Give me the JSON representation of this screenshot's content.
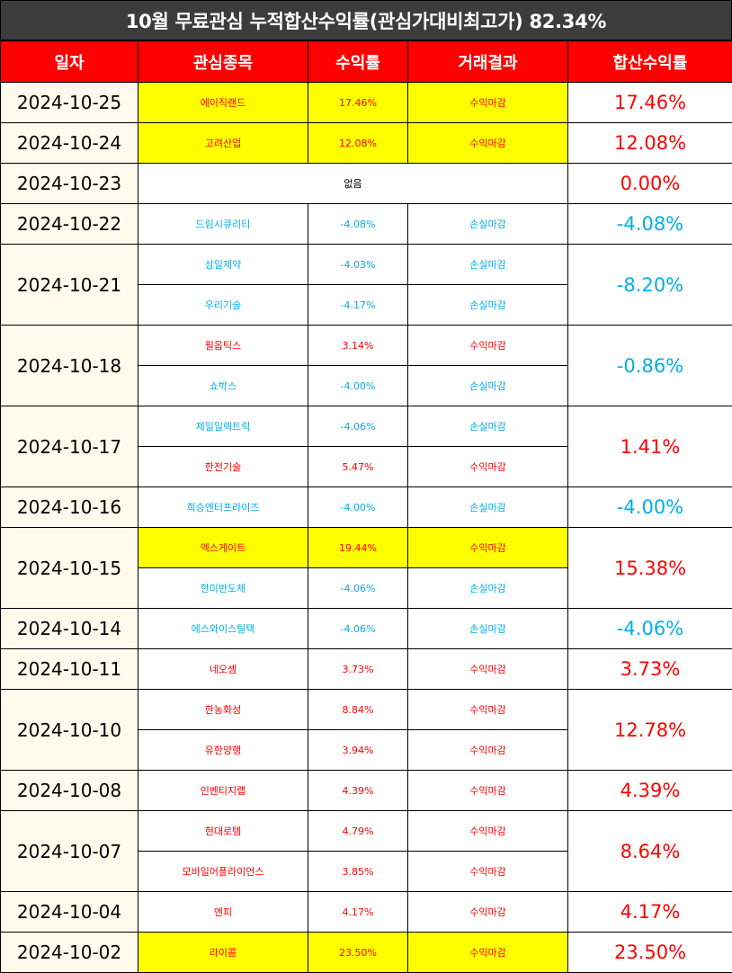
{
  "title": "10월 무료관심 누적합산수익률(관심가대비최고가) 82.34%",
  "headers": {
    "date": "일자",
    "stock": "관심종목",
    "return": "수익률",
    "result": "거래결과",
    "total": "합산수익률"
  },
  "colors": {
    "header_red": "#ff0000",
    "title_bg": "#3c3c3c",
    "profit": "#ff0000",
    "loss": "#00aee8",
    "highlight": "#ffff00",
    "date_bg": "#fffaeb"
  },
  "rows": [
    {
      "date": "2024-10-25",
      "total": "17.46%",
      "total_sign": "pos",
      "items": [
        {
          "stock": "에이직랜드",
          "return": "17.46%",
          "result": "수익마감",
          "sign": "pos",
          "highlight": true
        }
      ]
    },
    {
      "date": "2024-10-24",
      "total": "12.08%",
      "total_sign": "pos",
      "items": [
        {
          "stock": "고려산업",
          "return": "12.08%",
          "result": "수익마감",
          "sign": "pos",
          "highlight": true
        }
      ]
    },
    {
      "date": "2024-10-23",
      "total": "0.00%",
      "total_sign": "pos",
      "none": "없음",
      "items": []
    },
    {
      "date": "2024-10-22",
      "total": "-4.08%",
      "total_sign": "neg",
      "items": [
        {
          "stock": "드림시큐리티",
          "return": "-4.08%",
          "result": "손실마감",
          "sign": "neg",
          "highlight": false
        }
      ]
    },
    {
      "date": "2024-10-21",
      "total": "-8.20%",
      "total_sign": "neg",
      "items": [
        {
          "stock": "삼일제약",
          "return": "-4.03%",
          "result": "손실마감",
          "sign": "neg",
          "highlight": false
        },
        {
          "stock": "우리기술",
          "return": "-4.17%",
          "result": "손실마감",
          "sign": "neg",
          "highlight": false
        }
      ]
    },
    {
      "date": "2024-10-18",
      "total": "-0.86%",
      "total_sign": "neg",
      "items": [
        {
          "stock": "필옵틱스",
          "return": "3.14%",
          "result": "수익마감",
          "sign": "pos",
          "highlight": false
        },
        {
          "stock": "쇼박스",
          "return": "-4.00%",
          "result": "손실마감",
          "sign": "neg",
          "highlight": false
        }
      ]
    },
    {
      "date": "2024-10-17",
      "total": "1.41%",
      "total_sign": "pos",
      "items": [
        {
          "stock": "제일일렉트릭",
          "return": "-4.06%",
          "result": "손실마감",
          "sign": "neg",
          "highlight": false
        },
        {
          "stock": "한전기술",
          "return": "5.47%",
          "result": "수익마감",
          "sign": "pos",
          "highlight": false
        }
      ]
    },
    {
      "date": "2024-10-16",
      "total": "-4.00%",
      "total_sign": "neg",
      "items": [
        {
          "stock": "희승엔터프라이즈",
          "return": "-4.00%",
          "result": "손실마감",
          "sign": "neg",
          "highlight": false
        }
      ]
    },
    {
      "date": "2024-10-15",
      "total": "15.38%",
      "total_sign": "pos",
      "items": [
        {
          "stock": "엑스게이트",
          "return": "19.44%",
          "result": "수익마감",
          "sign": "pos",
          "highlight": true
        },
        {
          "stock": "한미반도체",
          "return": "-4.06%",
          "result": "손실마감",
          "sign": "neg",
          "highlight": false
        }
      ]
    },
    {
      "date": "2024-10-14",
      "total": "-4.06%",
      "total_sign": "neg",
      "items": [
        {
          "stock": "에스와이스틸텍",
          "return": "-4.06%",
          "result": "손실마감",
          "sign": "neg",
          "highlight": false
        }
      ]
    },
    {
      "date": "2024-10-11",
      "total": "3.73%",
      "total_sign": "pos",
      "items": [
        {
          "stock": "네오셈",
          "return": "3.73%",
          "result": "수익마감",
          "sign": "pos",
          "highlight": false
        }
      ]
    },
    {
      "date": "2024-10-10",
      "total": "12.78%",
      "total_sign": "pos",
      "items": [
        {
          "stock": "한농화성",
          "return": "8.84%",
          "result": "수익마감",
          "sign": "pos",
          "highlight": false
        },
        {
          "stock": "유한양행",
          "return": "3.94%",
          "result": "수익마감",
          "sign": "pos",
          "highlight": false
        }
      ]
    },
    {
      "date": "2024-10-08",
      "total": "4.39%",
      "total_sign": "pos",
      "items": [
        {
          "stock": "인벤티지랩",
          "return": "4.39%",
          "result": "수익마감",
          "sign": "pos",
          "highlight": false
        }
      ]
    },
    {
      "date": "2024-10-07",
      "total": "8.64%",
      "total_sign": "pos",
      "items": [
        {
          "stock": "현대로템",
          "return": "4.79%",
          "result": "수익마감",
          "sign": "pos",
          "highlight": false
        },
        {
          "stock": "모바일어플라이언스",
          "return": "3.85%",
          "result": "수익마감",
          "sign": "pos",
          "highlight": false
        }
      ]
    },
    {
      "date": "2024-10-04",
      "total": "4.17%",
      "total_sign": "pos",
      "items": [
        {
          "stock": "엔피",
          "return": "4.17%",
          "result": "수익마감",
          "sign": "pos",
          "highlight": false
        }
      ]
    },
    {
      "date": "2024-10-02",
      "total": "23.50%",
      "total_sign": "pos",
      "items": [
        {
          "stock": "라이콤",
          "return": "23.50%",
          "result": "수익마감",
          "sign": "pos",
          "highlight": true
        }
      ]
    }
  ]
}
